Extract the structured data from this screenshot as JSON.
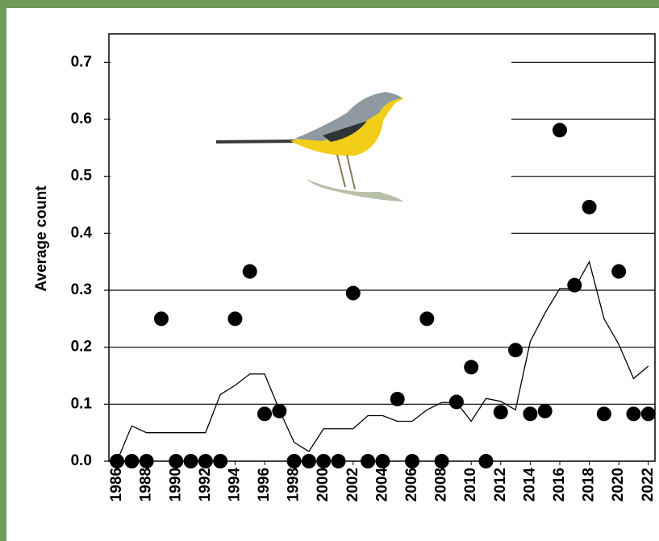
{
  "chart_data": {
    "type": "scatter",
    "y_label": "Average count",
    "x": [
      1986,
      1987,
      1988,
      1989,
      1990,
      1991,
      1992,
      1993,
      1994,
      1995,
      1996,
      1997,
      1998,
      1999,
      2000,
      2001,
      2002,
      2003,
      2004,
      2005,
      2006,
      2007,
      2008,
      2009,
      2010,
      2011,
      2012,
      2013,
      2014,
      2015,
      2016,
      2017,
      2018,
      2019,
      2020,
      2021,
      2022
    ],
    "series": [
      {
        "type": "scatter",
        "color": "#000000",
        "values": [
          0,
          0,
          0,
          0.25,
          0,
          0,
          0,
          0,
          0.25,
          0.333,
          0.083,
          0.088,
          0,
          0,
          0,
          0,
          0.295,
          0,
          0,
          0.109,
          0,
          0.25,
          0,
          0.104,
          0.165,
          0,
          0.086,
          0.195,
          0.083,
          0.088,
          0.581,
          0.309,
          0.446,
          0.083,
          0.333,
          0.083,
          0.083
        ]
      },
      {
        "type": "line",
        "color": "#000000",
        "values": [
          0,
          0.062,
          0.05,
          0.05,
          0.05,
          0.05,
          0.05,
          0.117,
          0.133,
          0.153,
          0.153,
          0.09,
          0.033,
          0.017,
          0.057,
          0.057,
          0.057,
          0.08,
          0.08,
          0.07,
          0.07,
          0.09,
          0.103,
          0.103,
          0.07,
          0.11,
          0.105,
          0.09,
          0.21,
          0.26,
          0.303,
          0.303,
          0.35,
          0.25,
          0.205,
          0.145,
          0.167
        ]
      }
    ],
    "xlim": [
      1985.45,
      2022.45
    ],
    "xticks": [
      1986,
      1988,
      1990,
      1992,
      1994,
      1996,
      1998,
      2000,
      2002,
      2004,
      2006,
      2008,
      2010,
      2012,
      2014,
      2016,
      2018,
      2020,
      2022
    ],
    "ylim": [
      0,
      0.75
    ],
    "yticks": [
      {
        "value": 0,
        "label": "0.0"
      },
      0.1,
      0.2,
      0.3,
      0.4,
      0.5,
      0.6,
      0.7
    ],
    "grid": true
  }
}
